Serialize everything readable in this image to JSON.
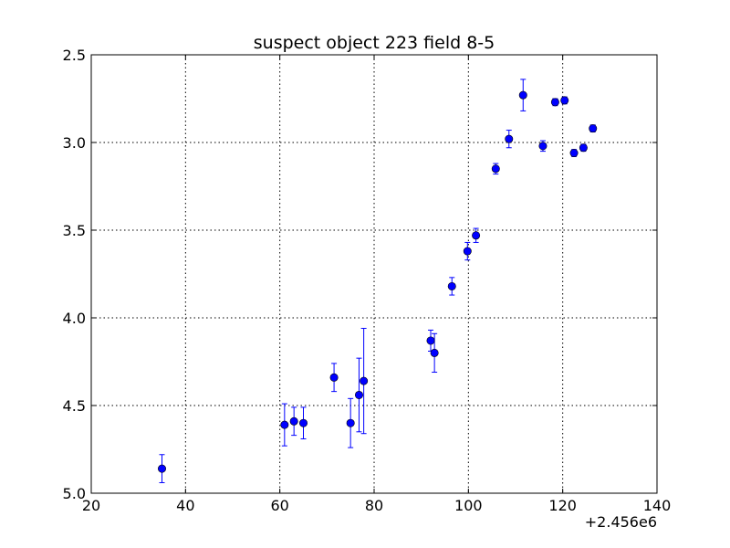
{
  "chart_data": {
    "type": "scatter",
    "title": "suspect object 223 field 8-5",
    "xlabel": "",
    "ylabel": "",
    "x_offset_label": "+2.456e6",
    "xlim": [
      20,
      140
    ],
    "ylim": [
      5.0,
      2.5
    ],
    "y_inverted": true,
    "grid": true,
    "marker_color": "#0000ff",
    "x_ticks": [
      20,
      40,
      60,
      80,
      100,
      120,
      140
    ],
    "x_tick_labels": [
      "20",
      "40",
      "60",
      "80",
      "100",
      "120",
      "140"
    ],
    "y_ticks": [
      2.5,
      3.0,
      3.5,
      4.0,
      4.5,
      5.0
    ],
    "y_tick_labels": [
      "2.5",
      "3.0",
      "3.5",
      "4.0",
      "4.5",
      "5.0"
    ],
    "points": [
      {
        "x": 35.0,
        "y": 4.86,
        "err": 0.08
      },
      {
        "x": 61.0,
        "y": 4.61,
        "err": 0.12
      },
      {
        "x": 63.0,
        "y": 4.59,
        "err": 0.08
      },
      {
        "x": 65.0,
        "y": 4.6,
        "err": 0.09
      },
      {
        "x": 71.5,
        "y": 4.34,
        "err": 0.08
      },
      {
        "x": 75.0,
        "y": 4.6,
        "err": 0.14
      },
      {
        "x": 76.8,
        "y": 4.44,
        "err": 0.21
      },
      {
        "x": 77.8,
        "y": 4.36,
        "err": 0.3
      },
      {
        "x": 92.0,
        "y": 4.13,
        "err": 0.06
      },
      {
        "x": 92.8,
        "y": 4.2,
        "err": 0.11
      },
      {
        "x": 96.5,
        "y": 3.82,
        "err": 0.05
      },
      {
        "x": 99.8,
        "y": 3.62,
        "err": 0.05
      },
      {
        "x": 101.6,
        "y": 3.53,
        "err": 0.04
      },
      {
        "x": 105.8,
        "y": 3.15,
        "err": 0.03
      },
      {
        "x": 108.6,
        "y": 2.98,
        "err": 0.05
      },
      {
        "x": 111.6,
        "y": 2.73,
        "err": 0.09
      },
      {
        "x": 115.8,
        "y": 3.02,
        "err": 0.03
      },
      {
        "x": 118.4,
        "y": 2.77,
        "err": 0.02
      },
      {
        "x": 120.4,
        "y": 2.76,
        "err": 0.02
      },
      {
        "x": 122.4,
        "y": 3.06,
        "err": 0.02
      },
      {
        "x": 124.4,
        "y": 3.03,
        "err": 0.02
      },
      {
        "x": 126.4,
        "y": 2.92,
        "err": 0.02
      }
    ]
  }
}
